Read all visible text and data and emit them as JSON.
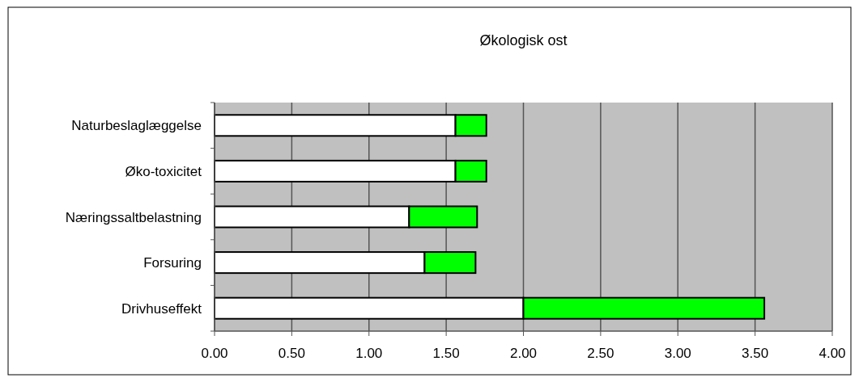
{
  "chart_data": {
    "type": "bar",
    "title": "Økologisk ost",
    "orientation": "horizontal",
    "stacked": true,
    "categories": [
      "Naturbeslaglæggelse",
      "Øko-toxicitet",
      "Næringssaltbelastning",
      "Forsuring",
      "Drivhuseffekt"
    ],
    "series": [
      {
        "color": "#ffffff",
        "values": [
          1.56,
          1.56,
          1.26,
          1.36,
          2.0
        ]
      },
      {
        "color": "#00ff00",
        "values": [
          0.2,
          0.2,
          0.44,
          0.33,
          1.56
        ]
      }
    ],
    "xlim": [
      0,
      4
    ],
    "xticks": [
      {
        "value": 0,
        "label": "0.00"
      },
      {
        "value": 0.5,
        "label": "0.50"
      },
      {
        "value": 1,
        "label": "1.00"
      },
      {
        "value": 1.5,
        "label": "1.50"
      },
      {
        "value": 2,
        "label": "2.00"
      },
      {
        "value": 2.5,
        "label": "2.50"
      },
      {
        "value": 3,
        "label": "3.00"
      },
      {
        "value": 3.5,
        "label": "3.50"
      },
      {
        "value": 4,
        "label": "4.00"
      }
    ],
    "grid": "x"
  }
}
